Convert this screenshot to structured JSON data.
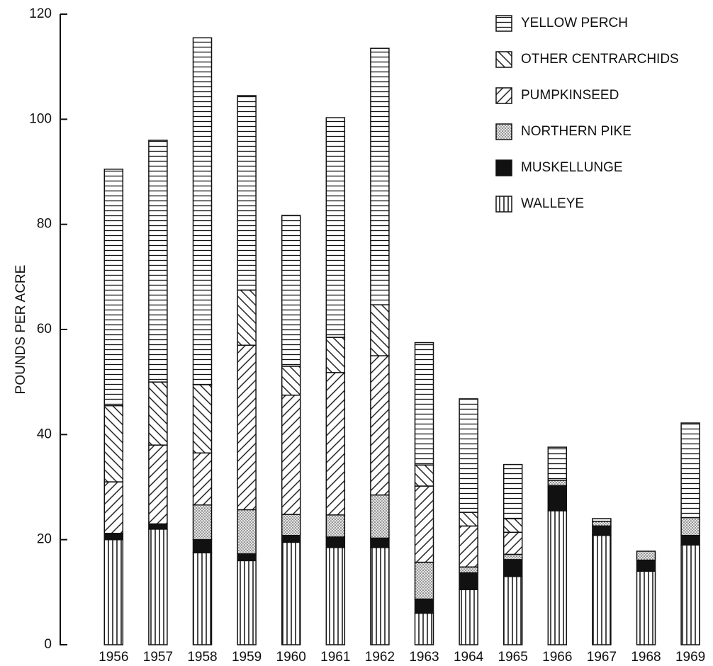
{
  "chart_data": {
    "type": "stacked-bar",
    "y_label": "POUNDS PER ACRE",
    "categories": [
      "1956",
      "1957",
      "1958",
      "1959",
      "1960",
      "1961",
      "1962",
      "1963",
      "1964",
      "1965",
      "1966",
      "1967",
      "1968",
      "1969"
    ],
    "series": [
      {
        "name": "WALLEYE",
        "pattern": "vertical",
        "values": [
          20,
          22,
          17.5,
          16,
          19.5,
          18.5,
          18.5,
          6,
          10.5,
          13,
          25.5,
          20.8,
          14,
          19
        ]
      },
      {
        "name": "MUSKELLUNGE",
        "pattern": "solid",
        "values": [
          1.2,
          1,
          2.5,
          1.3,
          1.3,
          2,
          1.8,
          2.7,
          3.2,
          3.2,
          4.8,
          1.8,
          2.1,
          1.8
        ]
      },
      {
        "name": "NORTHERN PIKE",
        "pattern": "dots",
        "values": [
          0,
          0,
          6.6,
          8.4,
          4,
          4.2,
          8.2,
          7,
          1.1,
          1,
          1,
          0.9,
          1.7,
          3.4
        ]
      },
      {
        "name": "PUMPKINSEED",
        "pattern": "diag-up",
        "values": [
          9.8,
          15,
          9.9,
          31.3,
          22.7,
          27.1,
          26.5,
          14.5,
          7.8,
          4.2,
          0,
          0,
          0,
          0
        ]
      },
      {
        "name": "OTHER CENTRARCHIDS",
        "pattern": "diag-down",
        "values": [
          14.5,
          12,
          13,
          10.5,
          5.5,
          6.7,
          9.7,
          4,
          2.6,
          2.6,
          0,
          0,
          0,
          0
        ]
      },
      {
        "name": "YELLOW PERCH",
        "pattern": "horizontal",
        "values": [
          45,
          46,
          66,
          37,
          28.7,
          41.8,
          48.8,
          23.3,
          21.6,
          10.3,
          6.3,
          0.5,
          0,
          18
        ]
      }
    ],
    "ylim": [
      0,
      120
    ],
    "yticks": [
      0,
      20,
      40,
      60,
      80,
      100,
      120
    ],
    "color": "#111111",
    "legend": "top-right"
  }
}
